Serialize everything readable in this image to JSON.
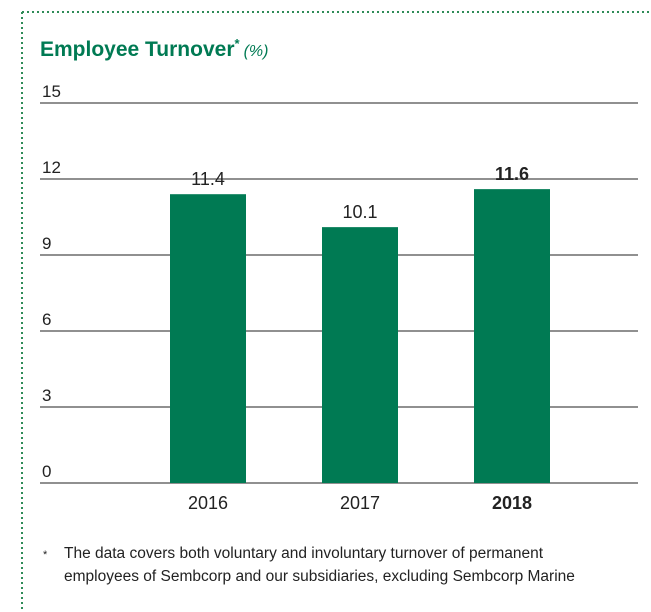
{
  "chart_data": {
    "type": "bar",
    "title": "Employee Turnover",
    "title_marker": "*",
    "unit": "(%)",
    "categories": [
      "2016",
      "2017",
      "2018"
    ],
    "values": [
      11.4,
      10.1,
      11.6
    ],
    "color": "#007a53",
    "highlight_index": 2,
    "ylim": [
      0,
      15
    ],
    "yticks": [
      0,
      3,
      6,
      9,
      12,
      15
    ],
    "grid": true,
    "footnote": {
      "marker": "*",
      "lines": [
        "The data covers both voluntary and involuntary turnover of permanent",
        "employees of Sembcorp and our subsidiaries, excluding Sembcorp Marine"
      ]
    }
  }
}
